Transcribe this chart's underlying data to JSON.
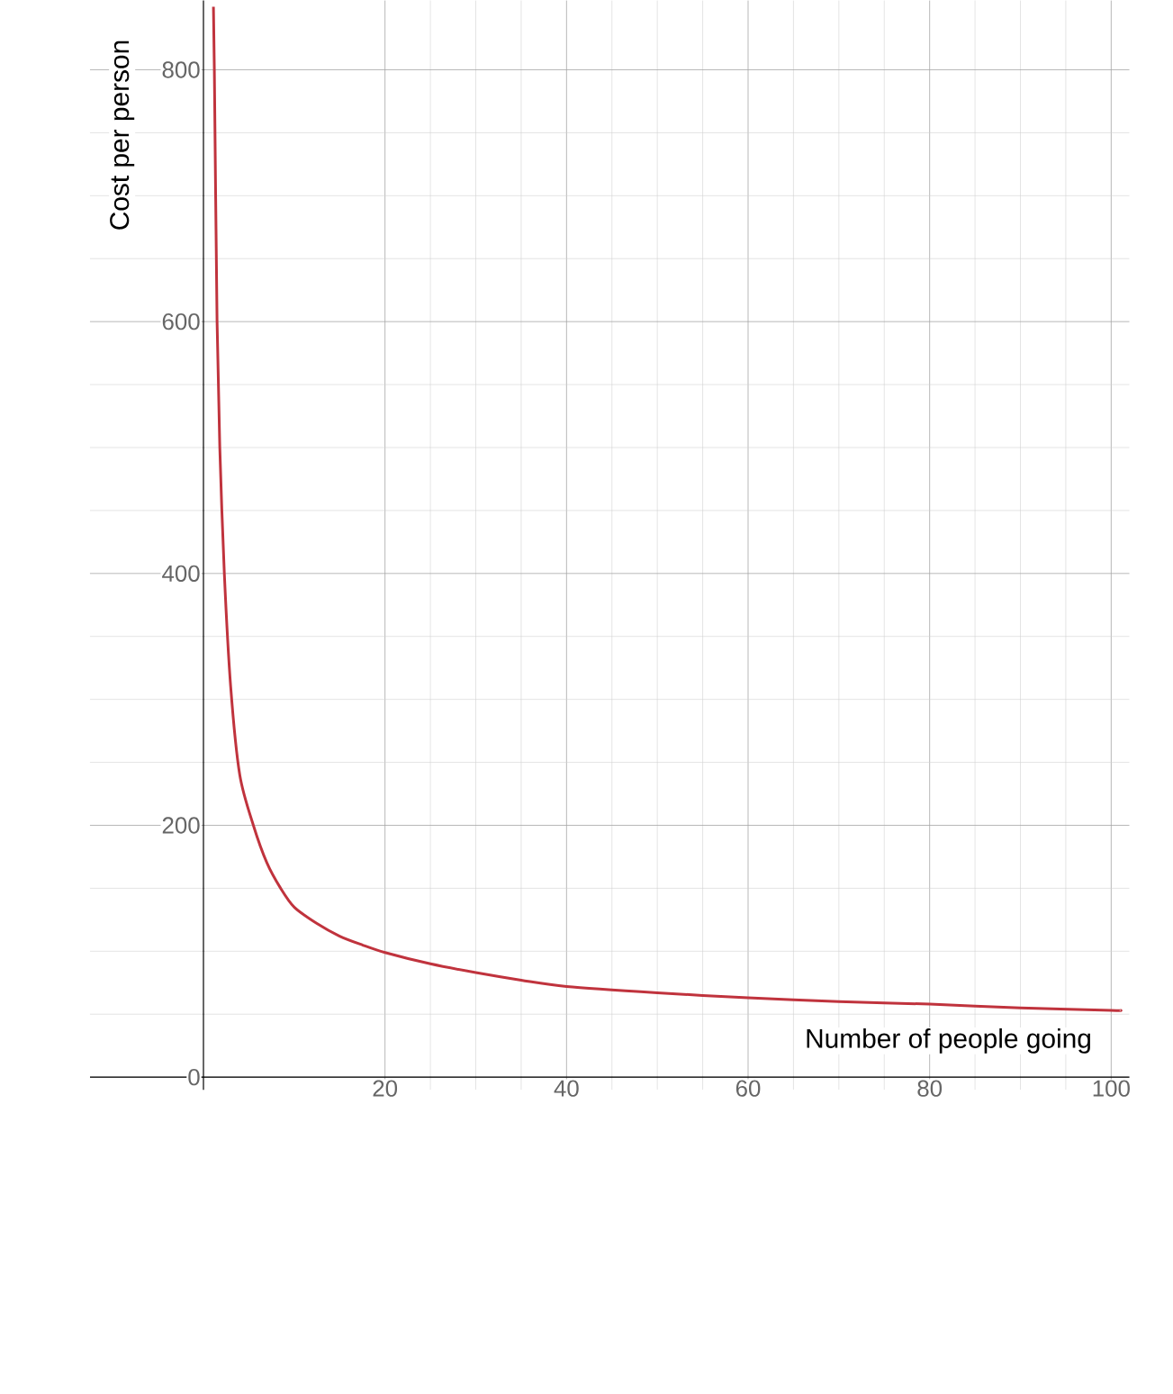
{
  "chart_data": {
    "type": "line",
    "xlabel": "Number of people going",
    "ylabel": "Cost per person",
    "x": [
      1.1,
      1.2,
      1.5,
      1.8,
      2.3,
      3,
      4,
      5.5,
      7,
      8.5,
      10,
      12.5,
      15,
      17.5,
      20,
      25,
      30,
      35,
      40,
      50,
      60,
      70,
      80,
      90,
      100,
      101
    ],
    "series": [
      {
        "color": "#c0333d",
        "values": [
          850,
          800,
          600,
          500,
          400,
          310,
          240,
          200,
          170,
          150,
          135,
          122,
          112,
          105,
          99,
          90,
          83,
          77,
          72,
          67,
          63,
          60,
          58,
          55,
          53,
          53
        ]
      }
    ],
    "xlim": [
      -12.5,
      102
    ],
    "ylim": [
      -10,
      855
    ],
    "xticks": [
      20,
      40,
      60,
      80,
      100
    ],
    "yticks": [
      0,
      200,
      400,
      600,
      800
    ],
    "grid": true,
    "marker": "none",
    "line_style": "solid"
  }
}
